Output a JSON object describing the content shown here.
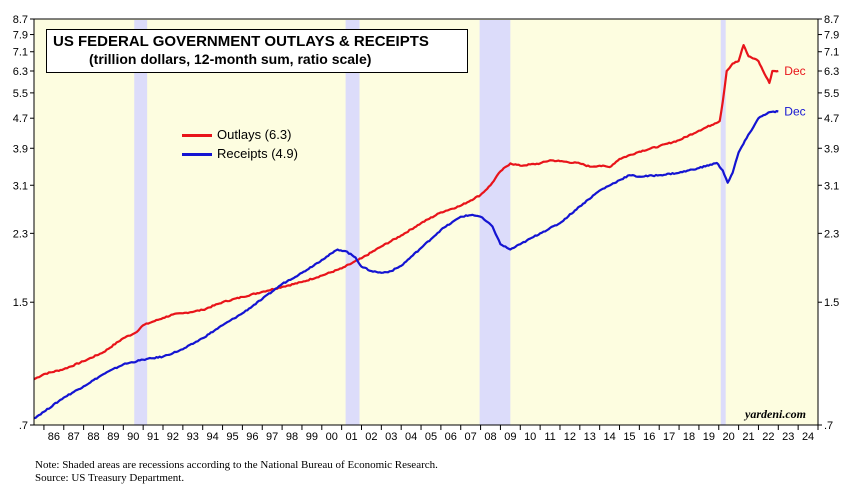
{
  "chart_data": {
    "type": "line",
    "title": "US FEDERAL GOVERNMENT OUTLAYS & RECEIPTS",
    "subtitle": "(trillion dollars, 12-month sum, ratio scale)",
    "scale": "log",
    "ylim": [
      0.7,
      8.7
    ],
    "xlim": [
      1985.5,
      2025.0
    ],
    "y_ticks": [
      {
        "value": 0.7,
        "label": ".7"
      },
      {
        "value": 1.5,
        "label": "1.5"
      },
      {
        "value": 2.3,
        "label": "2.3"
      },
      {
        "value": 3.1,
        "label": "3.1"
      },
      {
        "value": 3.9,
        "label": "3.9"
      },
      {
        "value": 4.7,
        "label": "4.7"
      },
      {
        "value": 5.5,
        "label": "5.5"
      },
      {
        "value": 6.3,
        "label": "6.3"
      },
      {
        "value": 7.1,
        "label": "7.1"
      },
      {
        "value": 7.9,
        "label": "7.9"
      },
      {
        "value": 8.7,
        "label": "8.7"
      }
    ],
    "x_tick_labels": [
      "86",
      "87",
      "88",
      "89",
      "90",
      "91",
      "92",
      "93",
      "94",
      "95",
      "96",
      "97",
      "98",
      "99",
      "00",
      "01",
      "02",
      "03",
      "04",
      "05",
      "06",
      "07",
      "08",
      "09",
      "10",
      "11",
      "12",
      "13",
      "14",
      "15",
      "16",
      "17",
      "18",
      "19",
      "20",
      "21",
      "22",
      "23",
      "24"
    ],
    "recessions": [
      {
        "start": 1990.55,
        "end": 1991.2
      },
      {
        "start": 2001.2,
        "end": 2001.9
      },
      {
        "start": 2007.95,
        "end": 2009.5
      },
      {
        "start": 2020.1,
        "end": 2020.35
      }
    ],
    "series": [
      {
        "name": "Outlays",
        "legend_label": "Outlays (6.3)",
        "end_label": "Dec",
        "color": "#e8141a",
        "points": [
          [
            1985.5,
            0.93
          ],
          [
            1986.0,
            0.96
          ],
          [
            1987.0,
            0.99
          ],
          [
            1988.0,
            1.04
          ],
          [
            1989.0,
            1.1
          ],
          [
            1990.0,
            1.2
          ],
          [
            1990.6,
            1.24
          ],
          [
            1991.0,
            1.3
          ],
          [
            1991.5,
            1.33
          ],
          [
            1992.0,
            1.36
          ],
          [
            1992.5,
            1.39
          ],
          [
            1993.0,
            1.4
          ],
          [
            1994.0,
            1.43
          ],
          [
            1995.0,
            1.5
          ],
          [
            1996.0,
            1.55
          ],
          [
            1997.0,
            1.6
          ],
          [
            1998.0,
            1.65
          ],
          [
            1999.0,
            1.7
          ],
          [
            2000.0,
            1.77
          ],
          [
            2001.0,
            1.85
          ],
          [
            2002.0,
            1.97
          ],
          [
            2003.0,
            2.12
          ],
          [
            2004.0,
            2.27
          ],
          [
            2005.0,
            2.45
          ],
          [
            2006.0,
            2.62
          ],
          [
            2007.0,
            2.73
          ],
          [
            2008.0,
            2.92
          ],
          [
            2008.5,
            3.1
          ],
          [
            2009.0,
            3.38
          ],
          [
            2009.5,
            3.55
          ],
          [
            2010.0,
            3.5
          ],
          [
            2011.0,
            3.55
          ],
          [
            2011.5,
            3.62
          ],
          [
            2012.0,
            3.6
          ],
          [
            2013.0,
            3.55
          ],
          [
            2013.5,
            3.48
          ],
          [
            2014.0,
            3.5
          ],
          [
            2014.5,
            3.47
          ],
          [
            2015.0,
            3.65
          ],
          [
            2016.0,
            3.82
          ],
          [
            2017.0,
            3.95
          ],
          [
            2018.0,
            4.1
          ],
          [
            2019.0,
            4.35
          ],
          [
            2019.8,
            4.55
          ],
          [
            2020.05,
            4.62
          ],
          [
            2020.2,
            5.2
          ],
          [
            2020.4,
            6.3
          ],
          [
            2020.7,
            6.6
          ],
          [
            2021.0,
            6.7
          ],
          [
            2021.25,
            7.4
          ],
          [
            2021.5,
            6.9
          ],
          [
            2021.8,
            6.8
          ],
          [
            2022.0,
            6.7
          ],
          [
            2022.3,
            6.2
          ],
          [
            2022.55,
            5.85
          ],
          [
            2022.7,
            6.3
          ],
          [
            2023.0,
            6.3
          ]
        ]
      },
      {
        "name": "Receipts",
        "legend_label": "Receipts (4.9)",
        "end_label": "Dec",
        "color": "#1414d2",
        "points": [
          [
            1985.5,
            0.73
          ],
          [
            1986.0,
            0.76
          ],
          [
            1987.0,
            0.83
          ],
          [
            1988.0,
            0.89
          ],
          [
            1989.0,
            0.96
          ],
          [
            1990.0,
            1.02
          ],
          [
            1991.0,
            1.05
          ],
          [
            1992.0,
            1.07
          ],
          [
            1993.0,
            1.12
          ],
          [
            1994.0,
            1.2
          ],
          [
            1995.0,
            1.3
          ],
          [
            1996.0,
            1.4
          ],
          [
            1997.0,
            1.53
          ],
          [
            1998.0,
            1.68
          ],
          [
            1999.0,
            1.8
          ],
          [
            2000.0,
            1.95
          ],
          [
            2000.8,
            2.08
          ],
          [
            2001.2,
            2.06
          ],
          [
            2001.7,
            1.98
          ],
          [
            2002.0,
            1.87
          ],
          [
            2002.5,
            1.82
          ],
          [
            2003.0,
            1.8
          ],
          [
            2003.5,
            1.82
          ],
          [
            2004.0,
            1.88
          ],
          [
            2005.0,
            2.1
          ],
          [
            2006.0,
            2.35
          ],
          [
            2007.0,
            2.55
          ],
          [
            2007.6,
            2.58
          ],
          [
            2008.0,
            2.55
          ],
          [
            2008.6,
            2.4
          ],
          [
            2009.0,
            2.15
          ],
          [
            2009.5,
            2.08
          ],
          [
            2010.0,
            2.15
          ],
          [
            2011.0,
            2.3
          ],
          [
            2012.0,
            2.45
          ],
          [
            2013.0,
            2.72
          ],
          [
            2014.0,
            3.0
          ],
          [
            2015.0,
            3.2
          ],
          [
            2015.5,
            3.3
          ],
          [
            2016.0,
            3.27
          ],
          [
            2017.0,
            3.3
          ],
          [
            2018.0,
            3.35
          ],
          [
            2019.0,
            3.45
          ],
          [
            2019.9,
            3.56
          ],
          [
            2020.2,
            3.4
          ],
          [
            2020.45,
            3.15
          ],
          [
            2020.7,
            3.35
          ],
          [
            2021.0,
            3.8
          ],
          [
            2021.4,
            4.15
          ],
          [
            2022.0,
            4.7
          ],
          [
            2022.5,
            4.87
          ],
          [
            2023.0,
            4.9
          ]
        ]
      }
    ],
    "source_tag": "yardeni.com"
  },
  "footnotes": [
    "Note: Shaded areas are recessions according to the National Bureau of Economic Research.",
    "Source: US Treasury Department."
  ]
}
